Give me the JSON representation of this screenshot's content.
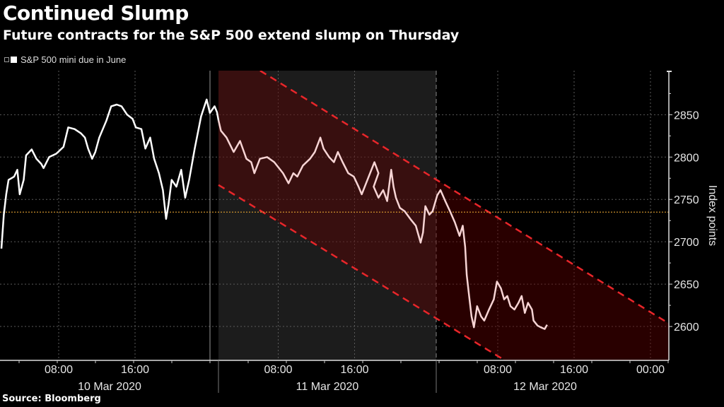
{
  "title": "Continued Slump",
  "subtitle": "Future contracts for the S&P 500 extend slump on Thursday",
  "source": "Source: Bloomberg",
  "chart_data": {
    "type": "line",
    "title": "Continued Slump",
    "subtitle": "Future contracts for the S&P 500 extend slump on Thursday",
    "ylabel": "Index points",
    "xlabel": "",
    "ylim": [
      2560,
      2902
    ],
    "y_ticks": [
      2600,
      2650,
      2700,
      2750,
      2800,
      2850
    ],
    "x_ticks": [
      {
        "time": "2020-03-10 08:00",
        "label": "08:00"
      },
      {
        "time": "2020-03-10 16:00",
        "label": "16:00"
      },
      {
        "time": "2020-03-11 08:00",
        "label": "08:00"
      },
      {
        "time": "2020-03-11 16:00",
        "label": "16:00"
      },
      {
        "time": "2020-03-12 08:00",
        "label": "08:00"
      },
      {
        "time": "2020-03-12 16:00",
        "label": "16:00"
      },
      {
        "time": "2020-03-13 00:00",
        "label": "00:00"
      }
    ],
    "date_labels": [
      "10 Mar 2020",
      "11 Mar 2020",
      "12 Mar 2020"
    ],
    "grid": true,
    "legend": {
      "position": "top-left",
      "entries": [
        "S&P 500 mini due in June"
      ]
    },
    "colors": {
      "line": "#ffffff",
      "line_highlight": "#f7d4d4",
      "channel_fill": "#5a0000",
      "channel_line": "#e8262a",
      "reference_line": "#e0a030",
      "session_shade": "#1c1c1c"
    },
    "reference_line": 2735,
    "highlight_from": "2020-03-11 01:45",
    "channel": {
      "upper": [
        [
          "2020-03-11 06:15",
          2901
        ],
        [
          "2020-03-13 02:00",
          2603
        ]
      ],
      "lower": [
        [
          "2020-03-11 01:45",
          2767
        ],
        [
          "2020-03-12 08:27",
          2562
        ]
      ]
    },
    "series": [
      {
        "name": "S&P 500 mini due in June",
        "points": [
          [
            "2020-03-10 02:00",
            2692
          ],
          [
            "2020-03-10 02:15",
            2732
          ],
          [
            "2020-03-10 02:30",
            2756
          ],
          [
            "2020-03-10 02:45",
            2773
          ],
          [
            "2020-03-10 03:20",
            2777
          ],
          [
            "2020-03-10 03:40",
            2785
          ],
          [
            "2020-03-10 03:55",
            2756
          ],
          [
            "2020-03-10 04:20",
            2773
          ],
          [
            "2020-03-10 04:35",
            2802
          ],
          [
            "2020-03-10 05:10",
            2809
          ],
          [
            "2020-03-10 05:40",
            2798
          ],
          [
            "2020-03-10 06:10",
            2792
          ],
          [
            "2020-03-10 06:25",
            2787
          ],
          [
            "2020-03-10 07:00",
            2800
          ],
          [
            "2020-03-10 07:45",
            2804
          ],
          [
            "2020-03-10 08:30",
            2812
          ],
          [
            "2020-03-10 09:00",
            2835
          ],
          [
            "2020-03-10 09:40",
            2833
          ],
          [
            "2020-03-10 10:20",
            2828
          ],
          [
            "2020-03-10 10:45",
            2823
          ],
          [
            "2020-03-10 11:05",
            2810
          ],
          [
            "2020-03-10 11:30",
            2798
          ],
          [
            "2020-03-10 11:50",
            2806
          ],
          [
            "2020-03-10 12:15",
            2823
          ],
          [
            "2020-03-10 13:00",
            2843
          ],
          [
            "2020-03-10 13:30",
            2860
          ],
          [
            "2020-03-10 14:05",
            2862
          ],
          [
            "2020-03-10 14:35",
            2860
          ],
          [
            "2020-03-10 15:10",
            2850
          ],
          [
            "2020-03-10 15:45",
            2845
          ],
          [
            "2020-03-10 16:05",
            2835
          ],
          [
            "2020-03-10 16:40",
            2833
          ],
          [
            "2020-03-10 18:05",
            2810
          ],
          [
            "2020-03-10 18:35",
            2823
          ],
          [
            "2020-03-10 19:00",
            2798
          ],
          [
            "2020-03-10 19:30",
            2781
          ],
          [
            "2020-03-10 19:55",
            2761
          ],
          [
            "2020-03-10 20:15",
            2727
          ],
          [
            "2020-03-10 20:30",
            2744
          ],
          [
            "2020-03-10 20:50",
            2773
          ],
          [
            "2020-03-10 21:20",
            2765
          ],
          [
            "2020-03-10 21:50",
            2785
          ],
          [
            "2020-03-10 22:15",
            2752
          ],
          [
            "2020-03-10 22:40",
            2773
          ],
          [
            "2020-03-10 23:15",
            2810
          ],
          [
            "2020-03-10 23:55",
            2848
          ],
          [
            "2020-03-11 00:30",
            2868
          ],
          [
            "2020-03-11 00:50",
            2852
          ],
          [
            "2020-03-11 01:20",
            2860
          ],
          [
            "2020-03-11 01:35",
            2853
          ],
          [
            "2020-03-11 01:45",
            2843
          ],
          [
            "2020-03-11 02:00",
            2831
          ],
          [
            "2020-03-11 02:35",
            2823
          ],
          [
            "2020-03-11 03:20",
            2806
          ],
          [
            "2020-03-11 04:00",
            2819
          ],
          [
            "2020-03-11 04:40",
            2798
          ],
          [
            "2020-03-11 05:10",
            2794
          ],
          [
            "2020-03-11 05:30",
            2781
          ],
          [
            "2020-03-11 06:05",
            2798
          ],
          [
            "2020-03-11 06:50",
            2800
          ],
          [
            "2020-03-11 07:35",
            2794
          ],
          [
            "2020-03-11 08:30",
            2781
          ],
          [
            "2020-03-11 09:05",
            2769
          ],
          [
            "2020-03-11 09:35",
            2781
          ],
          [
            "2020-03-11 10:00",
            2777
          ],
          [
            "2020-03-11 10:35",
            2790
          ],
          [
            "2020-03-11 11:20",
            2798
          ],
          [
            "2020-03-11 11:50",
            2806
          ],
          [
            "2020-03-11 12:25",
            2823
          ],
          [
            "2020-03-11 12:45",
            2810
          ],
          [
            "2020-03-11 13:20",
            2800
          ],
          [
            "2020-03-11 13:50",
            2794
          ],
          [
            "2020-03-11 14:15",
            2806
          ],
          [
            "2020-03-11 14:45",
            2794
          ],
          [
            "2020-03-11 15:20",
            2781
          ],
          [
            "2020-03-11 15:55",
            2777
          ],
          [
            "2020-03-11 16:25",
            2765
          ],
          [
            "2020-03-11 16:45",
            2756
          ],
          [
            "2020-03-11 18:05",
            2794
          ],
          [
            "2020-03-11 18:30",
            2781
          ],
          [
            "2020-03-11 19:00",
            2765
          ],
          [
            "2020-03-11 19:30",
            2752
          ],
          [
            "2020-03-11 20:00",
            2761
          ],
          [
            "2020-03-11 20:25",
            2748
          ],
          [
            "2020-03-11 20:50",
            2785
          ],
          [
            "2020-03-11 21:05",
            2765
          ],
          [
            "2020-03-11 21:20",
            2752
          ],
          [
            "2020-03-11 21:45",
            2740
          ],
          [
            "2020-03-11 22:15",
            2736
          ],
          [
            "2020-03-11 22:50",
            2727
          ],
          [
            "2020-03-11 23:25",
            2719
          ],
          [
            "2020-03-11 23:55",
            2699
          ],
          [
            "2020-03-12 00:10",
            2711
          ],
          [
            "2020-03-12 00:25",
            2742
          ],
          [
            "2020-03-12 00:50",
            2732
          ],
          [
            "2020-03-12 01:10",
            2736
          ],
          [
            "2020-03-12 01:40",
            2755
          ],
          [
            "2020-03-12 02:00",
            2761
          ],
          [
            "2020-03-12 02:30",
            2748
          ],
          [
            "2020-03-12 03:00",
            2736
          ],
          [
            "2020-03-12 03:30",
            2723
          ],
          [
            "2020-03-12 04:00",
            2707
          ],
          [
            "2020-03-12 04:20",
            2719
          ],
          [
            "2020-03-12 04:35",
            2694
          ],
          [
            "2020-03-12 04:45",
            2661
          ],
          [
            "2020-03-12 05:00",
            2636
          ],
          [
            "2020-03-12 05:15",
            2612
          ],
          [
            "2020-03-12 05:30",
            2599
          ],
          [
            "2020-03-12 05:50",
            2624
          ],
          [
            "2020-03-12 06:15",
            2612
          ],
          [
            "2020-03-12 06:35",
            2607
          ],
          [
            "2020-03-12 07:05",
            2620
          ],
          [
            "2020-03-12 07:35",
            2632
          ],
          [
            "2020-03-12 07:55",
            2653
          ],
          [
            "2020-03-12 08:20",
            2645
          ],
          [
            "2020-03-12 08:40",
            2632
          ],
          [
            "2020-03-12 09:00",
            2636
          ],
          [
            "2020-03-12 09:20",
            2624
          ],
          [
            "2020-03-12 09:45",
            2620
          ],
          [
            "2020-03-12 10:10",
            2628
          ],
          [
            "2020-03-12 10:30",
            2636
          ],
          [
            "2020-03-12 10:50",
            2616
          ],
          [
            "2020-03-12 11:10",
            2628
          ],
          [
            "2020-03-12 11:35",
            2620
          ],
          [
            "2020-03-12 11:45",
            2607
          ],
          [
            "2020-03-12 12:10",
            2601
          ],
          [
            "2020-03-12 12:30",
            2599
          ],
          [
            "2020-03-12 12:55",
            2597
          ],
          [
            "2020-03-12 13:10",
            2602
          ]
        ]
      }
    ]
  }
}
